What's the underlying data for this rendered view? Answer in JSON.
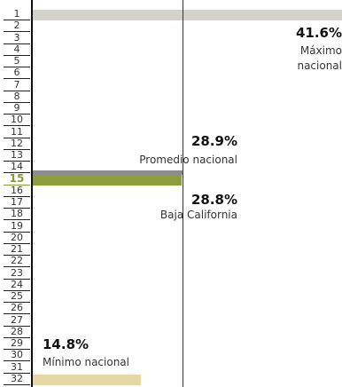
{
  "chart_data": {
    "type": "bar",
    "orientation": "horizontal",
    "highlight_rank": 15,
    "ranks": [
      1,
      2,
      3,
      4,
      5,
      6,
      7,
      8,
      9,
      10,
      11,
      12,
      13,
      14,
      15,
      16,
      17,
      18,
      19,
      20,
      21,
      22,
      23,
      24,
      25,
      26,
      27,
      28,
      29,
      30,
      31,
      32
    ],
    "xlim": [
      14.8,
      41.6
    ],
    "bars": [
      {
        "rank": 1,
        "value": 41.6,
        "color": "#d3d3cc"
      },
      {
        "rank": 15,
        "value": 28.8,
        "color": "#8e9e3c"
      },
      {
        "rank": 32,
        "value": 14.8,
        "color": "#e8d6a4"
      }
    ],
    "reference_lines": [
      {
        "value": 41.6,
        "label_value": "41.6%",
        "label_text": "Máximo nacional"
      },
      {
        "value": 28.9,
        "label_value": "28.9%",
        "label_text": "Promedio nacional"
      }
    ],
    "annotations": {
      "max_value": "41.6%",
      "max_text_line1": "Máximo",
      "max_text_line2": "nacional",
      "avg_value": "28.9%",
      "avg_text": "Promedio nacional",
      "state_value": "28.8%",
      "state_text": "Baja California",
      "min_value": "14.8%",
      "min_text": "Mínimo nacional"
    }
  }
}
